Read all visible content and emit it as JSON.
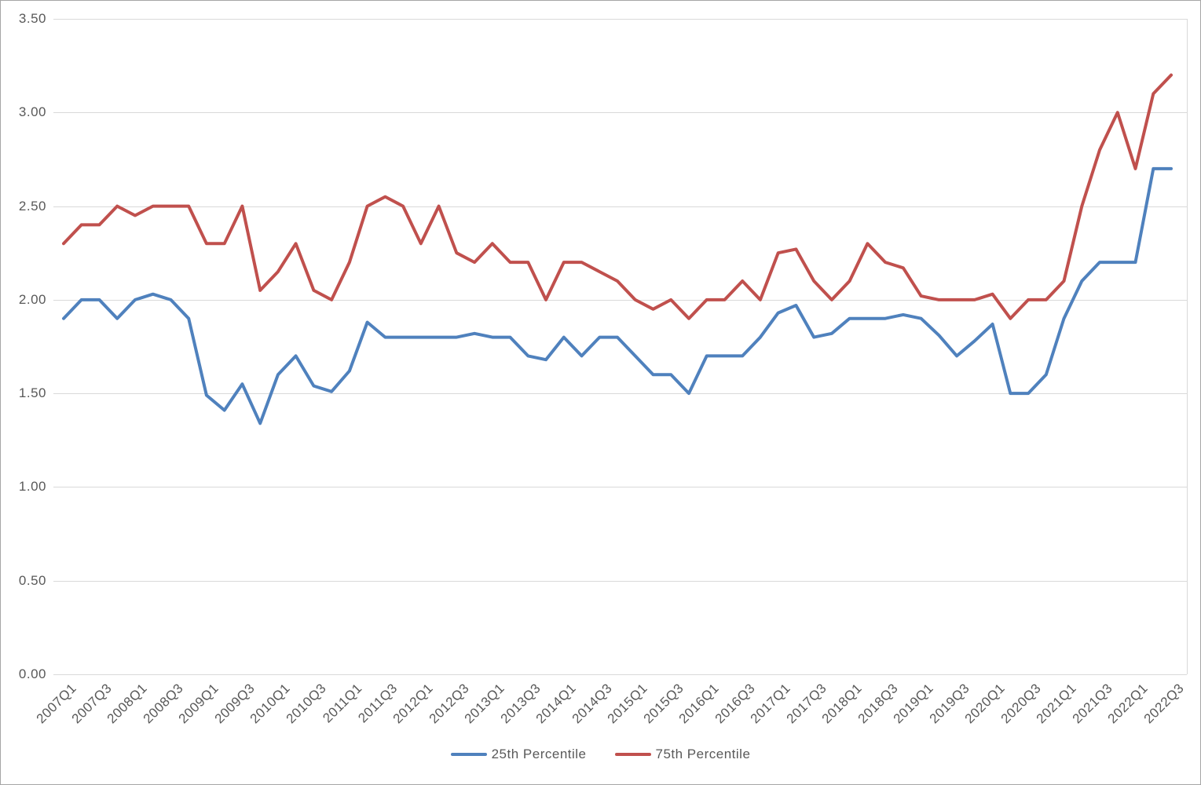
{
  "chart_data": {
    "type": "line",
    "title": "",
    "ylim": [
      0,
      3.5
    ],
    "grid": true,
    "legend_position": "bottom",
    "y_tick_labels": [
      "3.50",
      "3.00",
      "2.50",
      "2.00",
      "1.50",
      "1.00",
      "0.50",
      "0.00"
    ],
    "x_tick_labels": [
      "2007Q1",
      "2007Q3",
      "2008Q1",
      "2008Q3",
      "2009Q1",
      "2009Q3",
      "2010Q1",
      "2010Q3",
      "2011Q1",
      "2011Q3",
      "2012Q1",
      "2012Q3",
      "2013Q1",
      "2013Q3",
      "2014Q1",
      "2014Q3",
      "2015Q1",
      "2015Q3",
      "2016Q1",
      "2016Q3",
      "2017Q1",
      "2017Q3",
      "2018Q1",
      "2018Q3",
      "2019Q1",
      "2019Q3",
      "2020Q1",
      "2020Q3",
      "2021Q1",
      "2021Q3",
      "2022Q1",
      "2022Q3"
    ],
    "categories": [
      "2007Q1",
      "2007Q2",
      "2007Q3",
      "2007Q4",
      "2008Q1",
      "2008Q2",
      "2008Q3",
      "2008Q4",
      "2009Q1",
      "2009Q2",
      "2009Q3",
      "2009Q4",
      "2010Q1",
      "2010Q2",
      "2010Q3",
      "2010Q4",
      "2011Q1",
      "2011Q2",
      "2011Q3",
      "2011Q4",
      "2012Q1",
      "2012Q2",
      "2012Q3",
      "2012Q4",
      "2013Q1",
      "2013Q2",
      "2013Q3",
      "2013Q4",
      "2014Q1",
      "2014Q2",
      "2014Q3",
      "2014Q4",
      "2015Q1",
      "2015Q2",
      "2015Q3",
      "2015Q4",
      "2016Q1",
      "2016Q2",
      "2016Q3",
      "2016Q4",
      "2017Q1",
      "2017Q2",
      "2017Q3",
      "2017Q4",
      "2018Q1",
      "2018Q2",
      "2018Q3",
      "2018Q4",
      "2019Q1",
      "2019Q2",
      "2019Q3",
      "2019Q4",
      "2020Q1",
      "2020Q2",
      "2020Q3",
      "2020Q4",
      "2021Q1",
      "2021Q2",
      "2021Q3",
      "2021Q4",
      "2022Q1",
      "2022Q2",
      "2022Q3"
    ],
    "series": [
      {
        "name": "25th Percentile",
        "color": "#4F81BD",
        "values": [
          1.9,
          2.0,
          2.0,
          1.9,
          2.0,
          2.03,
          2.0,
          1.9,
          1.49,
          1.41,
          1.55,
          1.34,
          1.6,
          1.7,
          1.54,
          1.51,
          1.62,
          1.88,
          1.8,
          1.8,
          1.8,
          1.8,
          1.8,
          1.82,
          1.8,
          1.8,
          1.7,
          1.68,
          1.8,
          1.7,
          1.8,
          1.8,
          1.7,
          1.6,
          1.6,
          1.5,
          1.7,
          1.7,
          1.7,
          1.8,
          1.93,
          1.97,
          1.8,
          1.82,
          1.9,
          1.9,
          1.9,
          1.92,
          1.9,
          1.81,
          1.7,
          1.78,
          1.87,
          1.5,
          1.5,
          1.6,
          1.9,
          2.1,
          2.2,
          2.2,
          2.2,
          2.7,
          2.7
        ]
      },
      {
        "name": "75th Percentile",
        "color": "#C0504D",
        "values": [
          2.3,
          2.4,
          2.4,
          2.5,
          2.45,
          2.5,
          2.5,
          2.5,
          2.3,
          2.3,
          2.5,
          2.05,
          2.15,
          2.3,
          2.05,
          2.0,
          2.2,
          2.5,
          2.55,
          2.5,
          2.3,
          2.5,
          2.25,
          2.2,
          2.3,
          2.2,
          2.2,
          2.0,
          2.2,
          2.2,
          2.15,
          2.1,
          2.0,
          1.95,
          2.0,
          1.9,
          2.0,
          2.0,
          2.1,
          2.0,
          2.25,
          2.27,
          2.1,
          2.0,
          2.1,
          2.3,
          2.2,
          2.17,
          2.02,
          2.0,
          2.0,
          2.0,
          2.03,
          1.9,
          2.0,
          2.0,
          2.1,
          2.5,
          2.8,
          3.0,
          2.7,
          3.1,
          3.2
        ]
      }
    ]
  },
  "legend": {
    "items": [
      {
        "label": "25th Percentile",
        "color": "#4F81BD"
      },
      {
        "label": "75th Percentile",
        "color": "#C0504D"
      }
    ]
  },
  "colors": {
    "gridline": "#d9d9d9",
    "axis_text": "#595959",
    "background": "#ffffff"
  }
}
